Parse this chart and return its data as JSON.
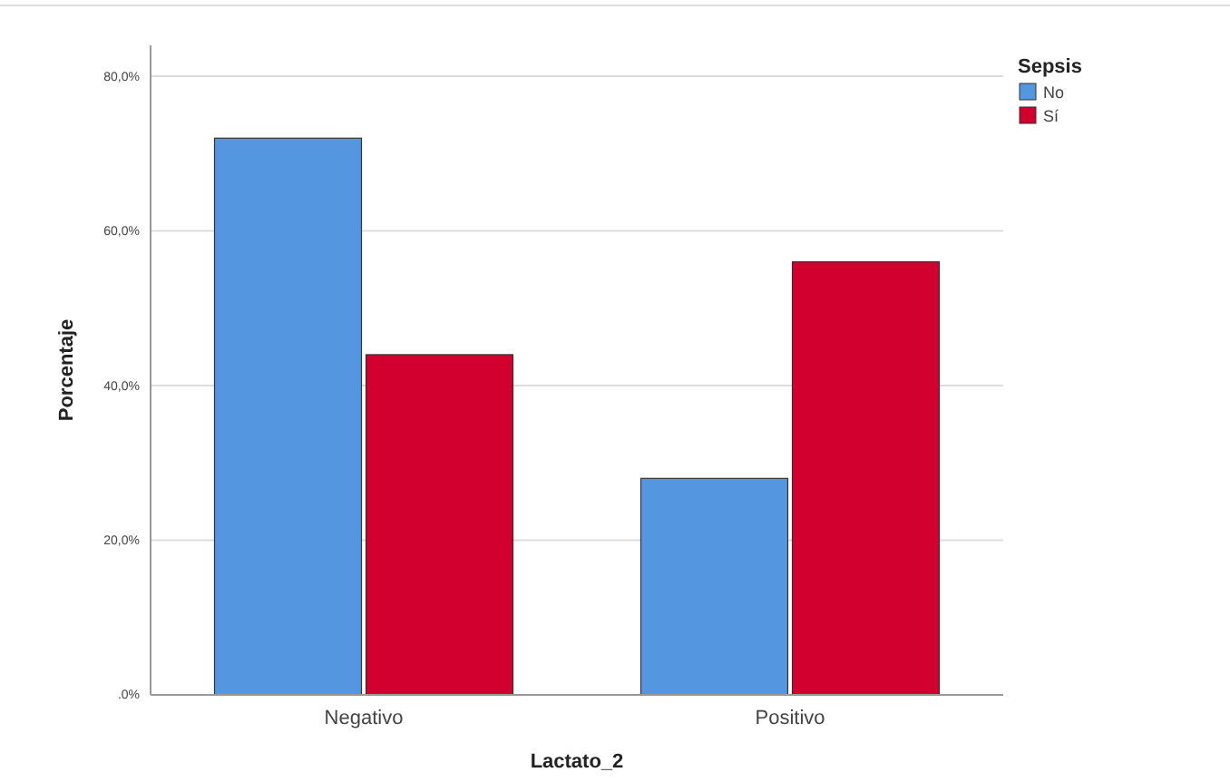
{
  "chart_data": {
    "type": "bar",
    "xlabel": "Lactato_2",
    "ylabel": "Porcentaje",
    "legend_title": "Sepsis",
    "categories": [
      "Negativo",
      "Positivo"
    ],
    "series": [
      {
        "name": "No",
        "color": "#5596e0",
        "values": [
          72,
          28
        ]
      },
      {
        "name": "Sí",
        "color": "#d1002e",
        "values": [
          44,
          56
        ]
      }
    ],
    "ylim": [
      0,
      84
    ],
    "yticks": [
      {
        "value": 0,
        "label": ".0%"
      },
      {
        "value": 20,
        "label": "20,0%"
      },
      {
        "value": 40,
        "label": "40,0%"
      },
      {
        "value": 60,
        "label": "60,0%"
      },
      {
        "value": 80,
        "label": "80,0%"
      }
    ],
    "grid": "y",
    "legend": "top right"
  }
}
